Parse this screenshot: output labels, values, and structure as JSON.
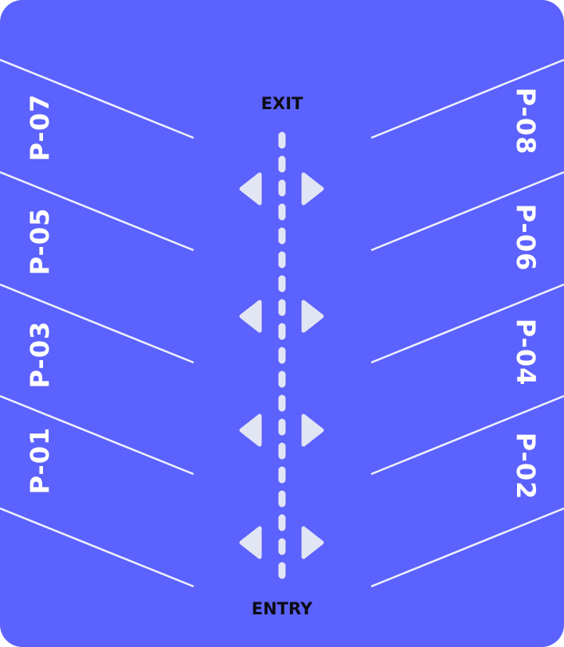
{
  "lot": {
    "background_color": "#5C62FE",
    "stripe_color": "#EEF0FF",
    "label_color": "#FFFFFF",
    "gate_label_color": "#0C0C14",
    "arrow_color": "#E2E5F4",
    "exit_label": "EXIT",
    "entry_label": "ENTRY",
    "left_spots": [
      "P-07",
      "P-05",
      "P-03",
      "P-01"
    ],
    "right_spots": [
      "P-08",
      "P-06",
      "P-04",
      "P-02"
    ],
    "arrow_icon_pairs": [
      "left-right-arrows-icon",
      "left-right-arrows-icon",
      "left-right-arrows-icon",
      "left-right-arrows-icon"
    ]
  }
}
